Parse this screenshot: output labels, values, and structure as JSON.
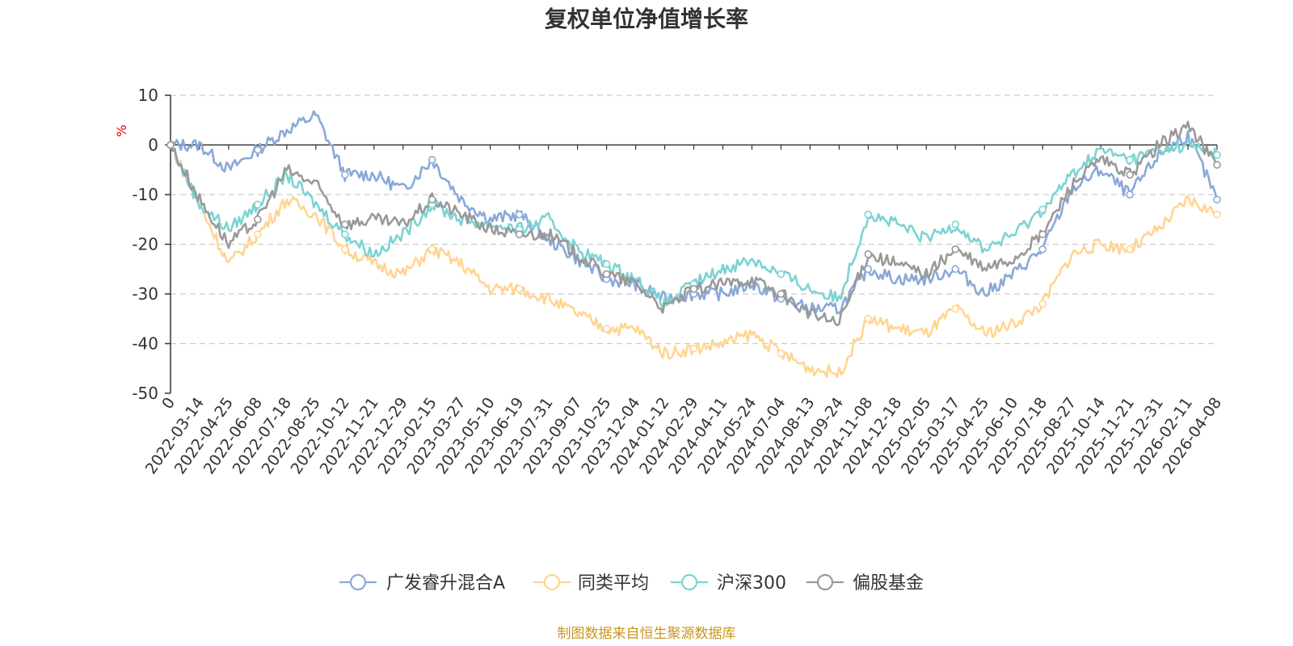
{
  "chart_data": {
    "type": "line",
    "title": "复权单位净值增长率",
    "ylabel": "%",
    "ylim": [
      -50,
      10
    ],
    "yticks": [
      10,
      0,
      -10,
      -20,
      -30,
      -40,
      -50
    ],
    "x_categories": [
      "0",
      "2022-03-14",
      "2022-04-25",
      "2022-06-08",
      "2022-07-18",
      "2022-08-25",
      "2022-10-12",
      "2022-11-21",
      "2022-12-29",
      "2023-02-15",
      "2023-03-27",
      "2023-05-10",
      "2023-06-19",
      "2023-07-31",
      "2023-09-07",
      "2023-10-25",
      "2023-12-04",
      "2024-01-12",
      "2024-02-29",
      "2024-04-11",
      "2024-05-24",
      "2024-07-04",
      "2024-08-13",
      "2024-09-24",
      "2024-11-08",
      "2024-12-18",
      "2025-02-05",
      "2025-03-17",
      "2025-04-25",
      "2025-06-10",
      "2025-07-18",
      "2025-08-27",
      "2025-10-14",
      "2025-11-21",
      "2025-12-31",
      "2026-02-11",
      "2026-04-08"
    ],
    "series": [
      {
        "name": "广发睿升混合A",
        "color": "#8aa8d8",
        "values": [
          0,
          0,
          -5,
          -1,
          3,
          6,
          -6,
          -6,
          -9,
          -3,
          -11,
          -15,
          -14,
          -19,
          -23,
          -27,
          -28,
          -31,
          -30,
          -30,
          -28,
          -31,
          -33,
          -33,
          -25,
          -27,
          -27,
          -25,
          -30,
          -26,
          -21,
          -9,
          -5,
          -10,
          -2,
          2,
          -11
        ]
      },
      {
        "name": "同类平均",
        "color": "#ffd591",
        "values": [
          0,
          -12,
          -24,
          -18,
          -11,
          -14,
          -21,
          -24,
          -26,
          -21,
          -24,
          -29,
          -29,
          -31,
          -34,
          -37,
          -37,
          -42,
          -41,
          -40,
          -38,
          -42,
          -45,
          -46,
          -35,
          -37,
          -38,
          -33,
          -38,
          -36,
          -32,
          -22,
          -20,
          -21,
          -17,
          -11,
          -14
        ]
      },
      {
        "name": "沪深300",
        "color": "#7dd3d3",
        "values": [
          0,
          -12,
          -17,
          -12,
          -6,
          -12,
          -18,
          -22,
          -18,
          -12,
          -15,
          -16,
          -17,
          -15,
          -21,
          -24,
          -27,
          -32,
          -28,
          -25,
          -23,
          -26,
          -29,
          -31,
          -14,
          -16,
          -19,
          -16,
          -21,
          -18,
          -13,
          -6,
          -1,
          -3,
          -1,
          0,
          -2
        ]
      },
      {
        "name": "偏股基金",
        "color": "#999999",
        "values": [
          0,
          -11,
          -20,
          -15,
          -5,
          -8,
          -16,
          -15,
          -16,
          -11,
          -14,
          -17,
          -18,
          -18,
          -22,
          -26,
          -28,
          -33,
          -29,
          -28,
          -27,
          -30,
          -34,
          -36,
          -22,
          -24,
          -26,
          -21,
          -25,
          -23,
          -18,
          -8,
          -3,
          -6,
          0,
          4,
          -4
        ]
      }
    ],
    "grid": true,
    "legend_position": "bottom-center"
  },
  "footer": {
    "source_text": "制图数据来自恒生聚源数据库"
  }
}
